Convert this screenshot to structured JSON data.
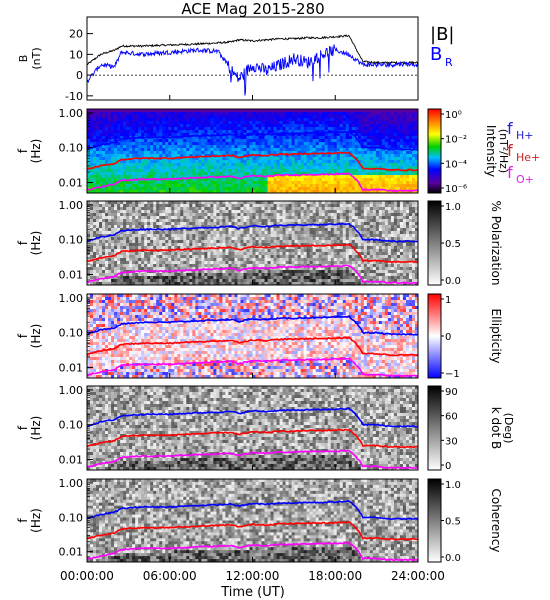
{
  "title": "ACE Mag 2015-280",
  "xlabel": "Time (UT)",
  "x_ticks": [
    "00:00:00",
    "06:00:00",
    "12:00:00",
    "18:00:00",
    "24:00:00"
  ],
  "panel1": {
    "ylabel": "B",
    "yunit": "(nT)",
    "yticks": [
      "20",
      "10",
      "0",
      "-10"
    ],
    "legend_b": "|B|",
    "legend_br": "B",
    "legend_br_sub": "R"
  },
  "spec_panels": [
    {
      "ylabel_f": "f",
      "ylabel_hz": "(Hz)",
      "yticks": [
        "1.00",
        "0.10",
        "0.01"
      ],
      "colorbar_label": "Intensity",
      "colorbar_unit": "(nT²/Hz)",
      "colorbar_ticks": [
        "10⁰",
        "10⁻²",
        "10⁻⁴",
        "10⁻⁶"
      ]
    },
    {
      "ylabel_f": "f",
      "ylabel_hz": "(Hz)",
      "yticks": [
        "1.00",
        "0.10",
        "0.01"
      ],
      "colorbar_label": "% Polarization",
      "colorbar_unit": "",
      "colorbar_ticks": [
        "1.0",
        "0.5",
        "0.0"
      ]
    },
    {
      "ylabel_f": "f",
      "ylabel_hz": "(Hz)",
      "yticks": [
        "1.00",
        "0.10",
        "0.01"
      ],
      "colorbar_label": "Ellipticity",
      "colorbar_unit": "",
      "colorbar_ticks": [
        "1",
        "0",
        "−1"
      ]
    },
    {
      "ylabel_f": "f",
      "ylabel_hz": "(Hz)",
      "yticks": [
        "1.00",
        "0.10",
        "0.01"
      ],
      "colorbar_label": "k dot B",
      "colorbar_unit": "(Deg)",
      "colorbar_ticks": [
        "90",
        "60",
        "30",
        "0"
      ]
    },
    {
      "ylabel_f": "f",
      "ylabel_hz": "(Hz)",
      "yticks": [
        "1.00",
        "0.10",
        "0.01"
      ],
      "colorbar_label": "Coherency",
      "colorbar_unit": "",
      "colorbar_ticks": [
        "1.0",
        "0.5",
        "0.0"
      ]
    }
  ],
  "gyro_legend": [
    {
      "main": "f",
      "sub": "H+",
      "color": "#2222cc"
    },
    {
      "main": "f",
      "sub": "He+",
      "color": "#cc2222"
    },
    {
      "main": "f",
      "sub": "O+",
      "color": "#dd22dd"
    }
  ],
  "colors": {
    "B": "#000000",
    "BR": "#0000ff",
    "H": "#0000ff",
    "He": "#ff0000",
    "O": "#ff00ff"
  },
  "chart_data": {
    "type": "line",
    "title": "ACE Mag 2015-280",
    "xlabel": "Time (UT)",
    "xlim": [
      0,
      24
    ],
    "x": [
      0,
      1,
      2,
      2.5,
      4,
      6,
      8,
      9.5,
      10.5,
      11,
      12,
      13,
      14,
      15,
      16,
      17,
      18,
      19,
      20,
      21,
      22,
      23,
      24
    ],
    "series": [
      {
        "name": "|B|",
        "units": "nT",
        "values": [
          5,
          10,
          12,
          14,
          14,
          14.5,
          15,
          15.5,
          16,
          17,
          16.5,
          17,
          17.5,
          17.5,
          18,
          18,
          18.5,
          19,
          6.5,
          6,
          6,
          6,
          6
        ]
      },
      {
        "name": "B_R",
        "units": "nT",
        "values": [
          -3,
          5,
          4,
          11,
          10,
          11,
          12,
          11.5,
          2,
          -2,
          5,
          2,
          5,
          8,
          6,
          10,
          12,
          10,
          5,
          5,
          5,
          5.5,
          5
        ]
      },
      {
        "name": "f_H+",
        "units": "Hz",
        "values": [
          0.09,
          0.12,
          0.14,
          0.18,
          0.2,
          0.2,
          0.22,
          0.23,
          0.24,
          0.21,
          0.25,
          0.24,
          0.26,
          0.26,
          0.27,
          0.27,
          0.28,
          0.29,
          0.1,
          0.1,
          0.09,
          0.09,
          0.09
        ]
      },
      {
        "name": "f_He+",
        "units": "Hz",
        "values": [
          0.024,
          0.03,
          0.035,
          0.046,
          0.05,
          0.05,
          0.055,
          0.058,
          0.06,
          0.052,
          0.062,
          0.06,
          0.065,
          0.065,
          0.068,
          0.068,
          0.07,
          0.072,
          0.025,
          0.025,
          0.023,
          0.023,
          0.023
        ]
      },
      {
        "name": "f_O+",
        "units": "Hz",
        "values": [
          0.006,
          0.0075,
          0.0088,
          0.0115,
          0.0125,
          0.0125,
          0.0138,
          0.0145,
          0.015,
          0.013,
          0.0156,
          0.015,
          0.0163,
          0.0163,
          0.017,
          0.017,
          0.0175,
          0.018,
          0.0063,
          0.0063,
          0.0058,
          0.0058,
          0.0058
        ]
      }
    ],
    "b_ylim": [
      -12,
      28
    ],
    "f_ylim": [
      0.005,
      1.3
    ],
    "f_scale": "log",
    "grid": false
  }
}
